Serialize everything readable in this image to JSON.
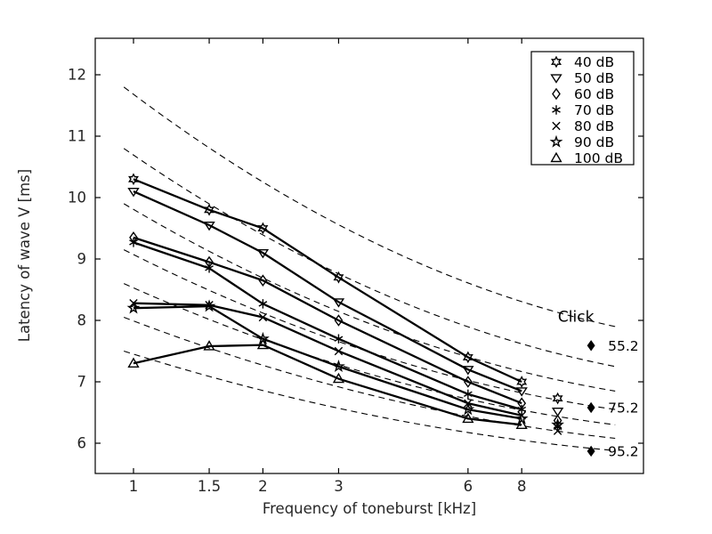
{
  "figure": {
    "background_color": "#ffffff",
    "foreground_color": "#000000",
    "tick_label_color": "#262626"
  },
  "chart_data": {
    "type": "line",
    "title": "",
    "xlabel": "Frequency of toneburst [kHz]",
    "ylabel": "Latency of wave V [ms]",
    "x_scale": "log",
    "grid": false,
    "legend_position": "top-right",
    "x_ticks": [
      1,
      1.5,
      2,
      3,
      6,
      8
    ],
    "x_tick_labels": [
      "1",
      "1.5",
      "2",
      "3",
      "6",
      "8"
    ],
    "y_ticks": [
      6,
      7,
      8,
      9,
      10,
      11,
      12
    ],
    "y_tick_labels": [
      "6",
      "7",
      "8",
      "9",
      "10",
      "11",
      "12"
    ],
    "xlim_kHz": [
      0.82,
      15.3
    ],
    "ylim_ms": [
      5.5,
      12.6
    ],
    "x_kHz": [
      1,
      1.5,
      2,
      3,
      6,
      8
    ],
    "series": [
      {
        "name": "40 dB",
        "marker": "hexagram",
        "values": [
          10.3,
          9.8,
          9.5,
          8.7,
          7.4,
          7.0
        ]
      },
      {
        "name": "50 dB",
        "marker": "triangle-down",
        "values": [
          10.1,
          9.55,
          9.1,
          8.3,
          7.2,
          6.85
        ]
      },
      {
        "name": "60 dB",
        "marker": "diamond",
        "values": [
          9.35,
          8.95,
          8.65,
          8.0,
          7.0,
          6.65
        ]
      },
      {
        "name": "70 dB",
        "marker": "asterisk",
        "values": [
          9.27,
          8.85,
          8.27,
          7.7,
          6.8,
          6.55
        ]
      },
      {
        "name": "80 dB",
        "marker": "x",
        "values": [
          8.28,
          8.25,
          8.05,
          7.5,
          6.65,
          6.45
        ]
      },
      {
        "name": "90 dB",
        "marker": "pentagram",
        "values": [
          8.2,
          8.23,
          7.7,
          7.25,
          6.55,
          6.4
        ]
      },
      {
        "name": "100 dB",
        "marker": "triangle-up",
        "values": [
          7.3,
          7.58,
          7.6,
          7.05,
          6.4,
          6.3
        ]
      }
    ],
    "dashed_reference_curves": [
      {
        "start_kHz": 0.95,
        "start_ms": 11.8,
        "end_kHz": 13.2,
        "end_ms": 7.9
      },
      {
        "start_kHz": 0.95,
        "start_ms": 10.8,
        "end_kHz": 13.2,
        "end_ms": 7.25
      },
      {
        "start_kHz": 0.95,
        "start_ms": 9.9,
        "end_kHz": 13.2,
        "end_ms": 6.85
      },
      {
        "start_kHz": 0.95,
        "start_ms": 9.15,
        "end_kHz": 13.2,
        "end_ms": 6.55
      },
      {
        "start_kHz": 0.95,
        "start_ms": 8.6,
        "end_kHz": 13.2,
        "end_ms": 6.3
      },
      {
        "start_kHz": 0.95,
        "start_ms": 8.05,
        "end_kHz": 13.2,
        "end_ms": 6.08
      },
      {
        "start_kHz": 0.95,
        "start_ms": 7.5,
        "end_kHz": 13.2,
        "end_ms": 5.88
      }
    ],
    "isolated_markers": {
      "x_kHz": 9.7,
      "points": [
        {
          "marker": "hexagram",
          "ms": 6.73
        },
        {
          "marker": "triangle-down",
          "ms": 6.52
        },
        {
          "marker": "diamond",
          "ms": 6.37
        },
        {
          "marker": "pentagram",
          "ms": 6.3
        },
        {
          "marker": "asterisk",
          "ms": 6.27
        },
        {
          "marker": "x",
          "ms": 6.2
        }
      ]
    },
    "click_annotation": {
      "title": "Click",
      "title_kHz": 10.7,
      "title_ms": 8.05,
      "marker": "filled-diamond",
      "marker_kHz": 11.6,
      "label_kHz": 12.7,
      "points": [
        {
          "label": "55.2",
          "ms": 7.59
        },
        {
          "label": "75.2",
          "ms": 6.58
        },
        {
          "label": "95.2",
          "ms": 5.87
        }
      ]
    }
  }
}
